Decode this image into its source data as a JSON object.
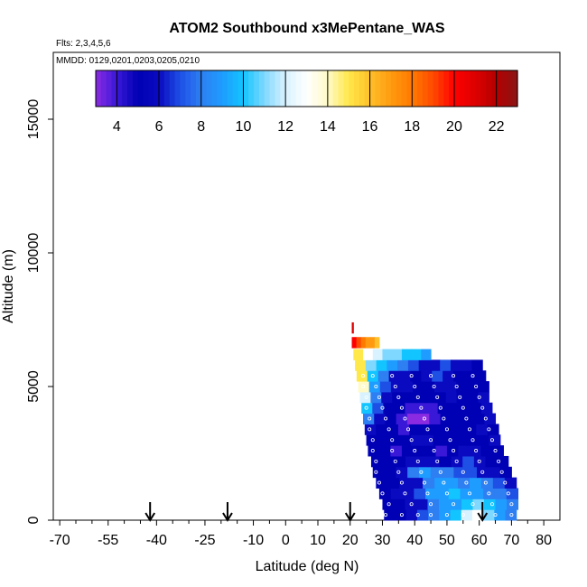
{
  "chart_data": {
    "type": "heatmap",
    "title": "ATOM2 Southbound x3MePentane_WAS",
    "flights_label": "Flts: 2,3,4,5,6",
    "mmdd_label": "MMDD: 0129,0201,0203,0205,0210",
    "xlabel": "Latitude (deg N)",
    "ylabel": "Altitude (m)",
    "xlim": [
      -72,
      85
    ],
    "ylim": [
      0,
      17500
    ],
    "xticks": [
      -70,
      -55,
      -40,
      -25,
      -10,
      0,
      10,
      20,
      30,
      40,
      50,
      60,
      70,
      80
    ],
    "xticklabels": [
      "-70",
      "-55",
      "-40",
      "-25",
      "-10",
      "0",
      "10",
      "20",
      "30",
      "40",
      "50",
      "60",
      "70",
      "80"
    ],
    "yticks": [
      0,
      5000,
      10000,
      15000
    ],
    "yticklabels": [
      "0",
      "5000",
      "10000",
      "15000"
    ],
    "colorbar": {
      "min": 3,
      "max": 23,
      "ticks": [
        4,
        6,
        8,
        10,
        12,
        14,
        16,
        18,
        20,
        22
      ],
      "ticklabels": [
        "4",
        "6",
        "8",
        "10",
        "12",
        "14",
        "16",
        "18",
        "20",
        "22"
      ],
      "stops": [
        [
          3,
          "#8a2be2"
        ],
        [
          4,
          "#3a18d8"
        ],
        [
          5,
          "#0000b4"
        ],
        [
          6,
          "#0a0ac0"
        ],
        [
          7,
          "#1e50e6"
        ],
        [
          8,
          "#2d7ff2"
        ],
        [
          9,
          "#1e9cff"
        ],
        [
          10,
          "#12c4ff"
        ],
        [
          11,
          "#7fd8ff"
        ],
        [
          12,
          "#d8f2ff"
        ],
        [
          13,
          "#ffffff"
        ],
        [
          14,
          "#fffac8"
        ],
        [
          15,
          "#ffe84a"
        ],
        [
          16,
          "#ffc02a"
        ],
        [
          17,
          "#ff9a10"
        ],
        [
          18,
          "#ff7a00"
        ],
        [
          19,
          "#ff4a00"
        ],
        [
          20,
          "#ff0000"
        ],
        [
          21,
          "#dd0000"
        ],
        [
          22,
          "#b40000"
        ],
        [
          23,
          "#8b1414"
        ]
      ]
    },
    "arrows_latitude": [
      -42,
      -18,
      20,
      61
    ],
    "grid": false,
    "curtain_layers": [
      {
        "alt": 200,
        "x0": 30.5,
        "x1": 71.5,
        "values": [
          5,
          5,
          6,
          7,
          8,
          9,
          10,
          12,
          13,
          11,
          9,
          8
        ]
      },
      {
        "alt": 600,
        "x0": 30,
        "x1": 72,
        "values": [
          5,
          5,
          6,
          6,
          8,
          9,
          9,
          10,
          11,
          10,
          9,
          8
        ]
      },
      {
        "alt": 1000,
        "x0": 29,
        "x1": 72,
        "values": [
          5,
          6,
          6,
          7,
          9,
          9,
          10,
          9,
          9,
          8,
          8,
          7
        ]
      },
      {
        "alt": 1400,
        "x0": 28,
        "x1": 71.5,
        "values": [
          5,
          5,
          6,
          6,
          8,
          9,
          9,
          8,
          9,
          8,
          7,
          6
        ]
      },
      {
        "alt": 1800,
        "x0": 27,
        "x1": 70,
        "values": [
          5,
          5,
          6,
          8,
          9,
          8,
          8,
          7,
          7,
          6,
          6,
          5
        ]
      },
      {
        "alt": 2200,
        "x0": 26.5,
        "x1": 69,
        "values": [
          5,
          5,
          5,
          6,
          6,
          6,
          5,
          6,
          7,
          6,
          5,
          5
        ]
      },
      {
        "alt": 2600,
        "x0": 25.5,
        "x1": 67.5,
        "values": [
          5,
          5,
          4,
          5,
          5,
          5,
          4,
          5,
          6,
          6,
          5,
          5
        ]
      },
      {
        "alt": 3000,
        "x0": 25,
        "x1": 66.5,
        "values": [
          5,
          5,
          5,
          5,
          6,
          6,
          5,
          5,
          5,
          5,
          5,
          6
        ]
      },
      {
        "alt": 3400,
        "x0": 24.5,
        "x1": 66,
        "values": [
          6,
          5,
          5,
          4,
          5,
          5,
          5,
          5,
          5,
          5,
          6,
          5
        ]
      },
      {
        "alt": 3800,
        "x0": 24,
        "x1": 65,
        "values": [
          8,
          6,
          5,
          4,
          3,
          3,
          4,
          5,
          5,
          5,
          5,
          6
        ]
      },
      {
        "alt": 4200,
        "x0": 23.5,
        "x1": 64,
        "values": [
          10,
          7,
          5,
          5,
          4,
          4,
          4,
          5,
          5,
          5,
          5,
          6
        ]
      },
      {
        "alt": 4600,
        "x0": 23,
        "x1": 63,
        "values": [
          12,
          8,
          6,
          5,
          5,
          5,
          5,
          5,
          6,
          5,
          5,
          6
        ]
      },
      {
        "alt": 5000,
        "x0": 22.5,
        "x1": 63,
        "values": [
          14,
          9,
          7,
          6,
          6,
          5,
          5,
          6,
          6,
          5,
          5,
          5
        ]
      },
      {
        "alt": 5400,
        "x0": 22,
        "x1": 62,
        "values": [
          15,
          10,
          8,
          6,
          6,
          5,
          6,
          7,
          6,
          5,
          5,
          5
        ]
      },
      {
        "alt": 5800,
        "x0": 21.5,
        "x1": 61,
        "values": [
          15,
          11,
          10,
          9,
          8,
          7,
          6,
          6,
          7,
          6,
          6,
          5
        ]
      },
      {
        "alt": 6200,
        "x0": 21,
        "x1": 45,
        "values": [
          15,
          13,
          12,
          11,
          11,
          10,
          10,
          9
        ]
      },
      {
        "alt": 6650,
        "x0": 20.5,
        "x1": 29,
        "values": [
          20,
          19,
          18,
          17,
          17,
          16
        ]
      },
      {
        "alt": 7200,
        "x0": 20.5,
        "x1": 21,
        "values": [
          21
        ]
      }
    ],
    "sample_points": [
      [
        31,
        200
      ],
      [
        36,
        200
      ],
      [
        41,
        200
      ],
      [
        45,
        200
      ],
      [
        50,
        200
      ],
      [
        55,
        200
      ],
      [
        60,
        200
      ],
      [
        65,
        200
      ],
      [
        70,
        200
      ],
      [
        32,
        600
      ],
      [
        39,
        600
      ],
      [
        45,
        600
      ],
      [
        52,
        600
      ],
      [
        58,
        600
      ],
      [
        64,
        600
      ],
      [
        70,
        600
      ],
      [
        30,
        1000
      ],
      [
        37,
        1000
      ],
      [
        44,
        1000
      ],
      [
        50,
        1000
      ],
      [
        57,
        1000
      ],
      [
        63,
        1000
      ],
      [
        69,
        1000
      ],
      [
        29,
        1400
      ],
      [
        36,
        1400
      ],
      [
        43,
        1400
      ],
      [
        49,
        1400
      ],
      [
        56,
        1400
      ],
      [
        62,
        1400
      ],
      [
        68,
        1400
      ],
      [
        28,
        1800
      ],
      [
        35,
        1800
      ],
      [
        42,
        1800
      ],
      [
        48,
        1800
      ],
      [
        55,
        1800
      ],
      [
        61,
        1800
      ],
      [
        67,
        1800
      ],
      [
        28,
        2200
      ],
      [
        34,
        2200
      ],
      [
        41,
        2200
      ],
      [
        47,
        2200
      ],
      [
        53,
        2200
      ],
      [
        60,
        2200
      ],
      [
        66,
        2200
      ],
      [
        27,
        2600
      ],
      [
        33,
        2600
      ],
      [
        40,
        2600
      ],
      [
        46,
        2600
      ],
      [
        52,
        2600
      ],
      [
        59,
        2600
      ],
      [
        65,
        2600
      ],
      [
        27,
        3000
      ],
      [
        33,
        3000
      ],
      [
        39,
        3000
      ],
      [
        45,
        3000
      ],
      [
        51,
        3000
      ],
      [
        58,
        3000
      ],
      [
        64,
        3000
      ],
      [
        26,
        3400
      ],
      [
        32,
        3400
      ],
      [
        38,
        3400
      ],
      [
        44,
        3400
      ],
      [
        50,
        3400
      ],
      [
        57,
        3400
      ],
      [
        63,
        3400
      ],
      [
        26,
        3800
      ],
      [
        31,
        3800
      ],
      [
        37,
        3800
      ],
      [
        43,
        3800
      ],
      [
        49,
        3800
      ],
      [
        56,
        3800
      ],
      [
        62,
        3800
      ],
      [
        25,
        4200
      ],
      [
        30,
        4200
      ],
      [
        36,
        4200
      ],
      [
        42,
        4200
      ],
      [
        48,
        4200
      ],
      [
        55,
        4200
      ],
      [
        61,
        4200
      ],
      [
        25,
        4600
      ],
      [
        29,
        4600
      ],
      [
        35,
        4600
      ],
      [
        41,
        4600
      ],
      [
        47,
        4600
      ],
      [
        54,
        4600
      ],
      [
        60,
        4600
      ],
      [
        24,
        5000
      ],
      [
        28,
        5000
      ],
      [
        34,
        5000
      ],
      [
        40,
        5000
      ],
      [
        46,
        5000
      ],
      [
        53,
        5000
      ],
      [
        59,
        5000
      ],
      [
        24,
        5400
      ],
      [
        27,
        5400
      ],
      [
        33,
        5400
      ],
      [
        39,
        5400
      ],
      [
        45,
        5400
      ],
      [
        52,
        5400
      ],
      [
        58,
        5400
      ]
    ]
  }
}
